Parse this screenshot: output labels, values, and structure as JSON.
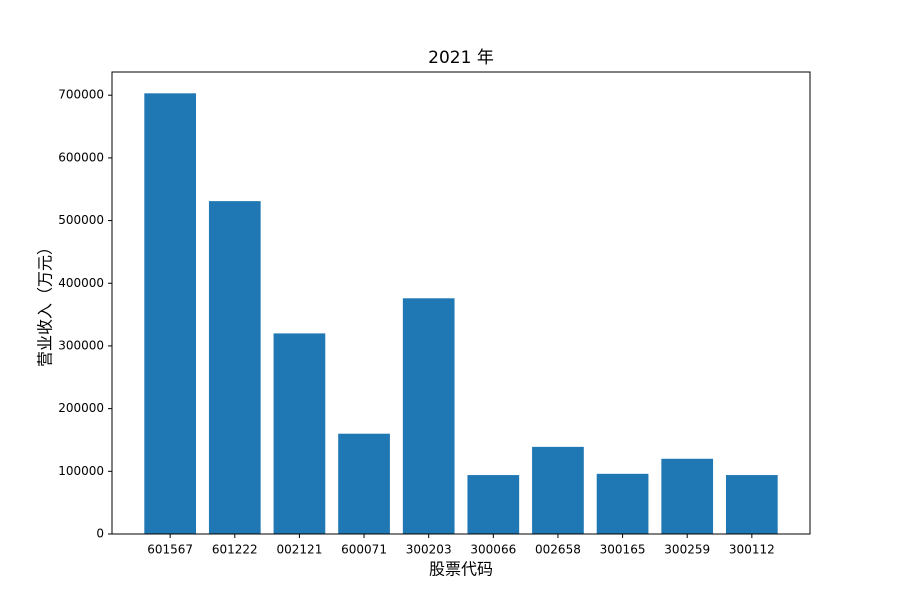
{
  "chart_data": {
    "type": "bar",
    "title": "2021 年",
    "x_label": "股票代码",
    "y_label": "营业收入（万元）",
    "categories": [
      "601567",
      "601222",
      "002121",
      "600071",
      "300203",
      "300066",
      "002658",
      "300165",
      "300259",
      "300112"
    ],
    "values": [
      703000,
      531000,
      320000,
      160000,
      376000,
      94000,
      139000,
      96000,
      120000,
      94000
    ],
    "color": "#1f77b4",
    "ylim": [
      0,
      737000
    ],
    "yticks": [
      0,
      100000,
      200000,
      300000,
      400000,
      500000,
      600000,
      700000
    ],
    "grid": false
  }
}
